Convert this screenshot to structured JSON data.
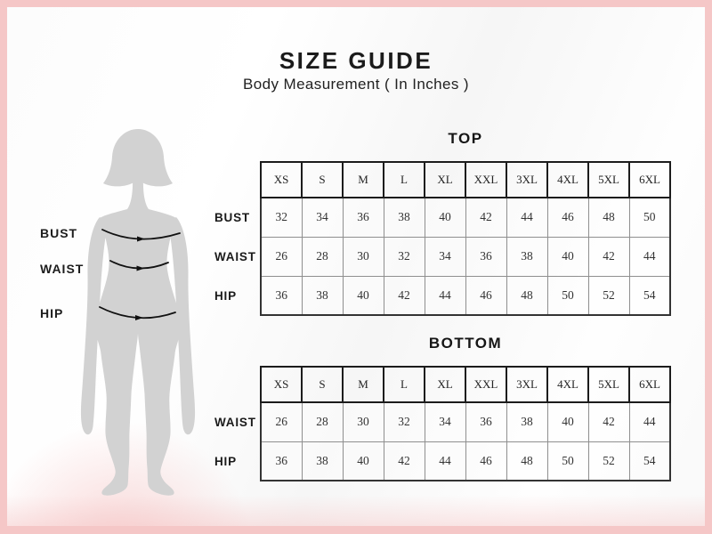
{
  "theme": {
    "frame_color": "#f5c7c7",
    "silhouette_color": "#d2d2d2",
    "line_color": "#111111",
    "header_border_color": "#1c1c1c",
    "grid_border_color": "#8f8f8f"
  },
  "header": {
    "title": "SIZE GUIDE",
    "subtitle": "Body Measurement ( In Inches )"
  },
  "figure": {
    "labels": {
      "bust": "BUST",
      "waist": "WAIST",
      "hip": "HIP"
    }
  },
  "tables": [
    {
      "title": "TOP",
      "sizes": [
        "XS",
        "S",
        "M",
        "L",
        "XL",
        "XXL",
        "3XL",
        "4XL",
        "5XL",
        "6XL"
      ],
      "rows": [
        {
          "label": "BUST",
          "values": [
            32,
            34,
            36,
            38,
            40,
            42,
            44,
            46,
            48,
            50
          ]
        },
        {
          "label": "WAIST",
          "values": [
            26,
            28,
            30,
            32,
            34,
            36,
            38,
            40,
            42,
            44
          ]
        },
        {
          "label": "HIP",
          "values": [
            36,
            38,
            40,
            42,
            44,
            46,
            48,
            50,
            52,
            54
          ]
        }
      ]
    },
    {
      "title": "BOTTOM",
      "sizes": [
        "XS",
        "S",
        "M",
        "L",
        "XL",
        "XXL",
        "3XL",
        "4XL",
        "5XL",
        "6XL"
      ],
      "rows": [
        {
          "label": "WAIST",
          "values": [
            26,
            28,
            30,
            32,
            34,
            36,
            38,
            40,
            42,
            44
          ]
        },
        {
          "label": "HIP",
          "values": [
            36,
            38,
            40,
            42,
            44,
            46,
            48,
            50,
            52,
            54
          ]
        }
      ]
    }
  ]
}
